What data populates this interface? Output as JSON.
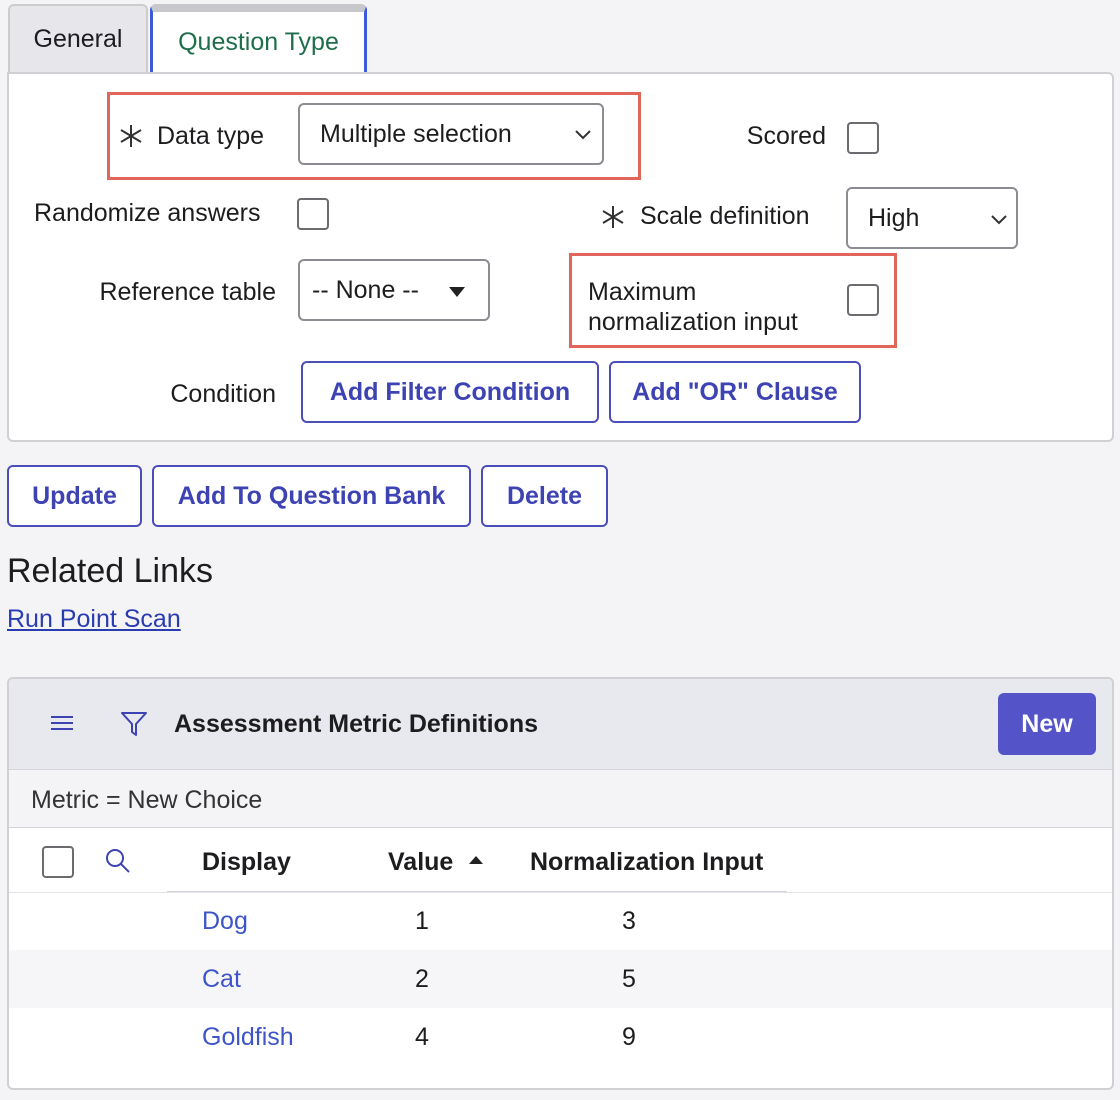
{
  "tabs": [
    "General",
    "Question Type"
  ],
  "form": {
    "data_type": {
      "label": "Data type",
      "value": "Multiple selection"
    },
    "scored": {
      "label": "Scored"
    },
    "randomize_answers": {
      "label": "Randomize answers"
    },
    "scale_definition": {
      "label": "Scale definition",
      "value": "High"
    },
    "reference_table": {
      "label": "Reference table",
      "value": "-- None --"
    },
    "maximum_normalization_input": {
      "label": "Maximum normalization input"
    },
    "condition": {
      "label": "Condition",
      "buttons": [
        "Add Filter Condition",
        "Add \"OR\" Clause"
      ]
    }
  },
  "actions": [
    "Update",
    "Add To Question Bank",
    "Delete"
  ],
  "related_links": {
    "title": "Related Links",
    "links": [
      "Run Point Scan"
    ]
  },
  "list": {
    "title": "Assessment Metric Definitions",
    "new_button": "New",
    "filter": "Metric = New Choice",
    "columns": [
      "Display",
      "Value",
      "Normalization Input"
    ],
    "rows": [
      [
        "Dog",
        1,
        3
      ],
      [
        "Cat",
        2,
        5
      ],
      [
        "Goldfish",
        4,
        9
      ]
    ]
  }
}
